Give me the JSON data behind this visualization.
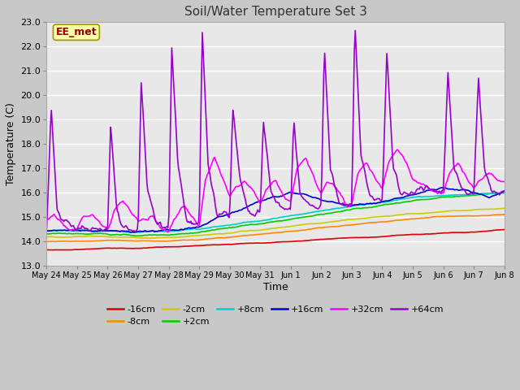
{
  "title": "Soil/Water Temperature Set 3",
  "xlabel": "Time",
  "ylabel": "Temperature (C)",
  "ylim": [
    13.0,
    23.0
  ],
  "yticks": [
    13.0,
    14.0,
    15.0,
    16.0,
    17.0,
    18.0,
    19.0,
    20.0,
    21.0,
    22.0,
    23.0
  ],
  "xtick_labels": [
    "May 24",
    "May 25",
    "May 26",
    "May 27",
    "May 28",
    "May 29",
    "May 30",
    "May 31",
    "Jun 1",
    "Jun 2",
    "Jun 3",
    "Jun 4",
    "Jun 5",
    "Jun 6",
    "Jun 7",
    "Jun 8"
  ],
  "series": [
    {
      "label": "-16cm",
      "color": "#dd0000"
    },
    {
      "label": "-8cm",
      "color": "#ff8800"
    },
    {
      "label": "-2cm",
      "color": "#cccc00"
    },
    {
      "label": "+2cm",
      "color": "#00cc00"
    },
    {
      "label": "+8cm",
      "color": "#00cccc"
    },
    {
      "label": "+16cm",
      "color": "#0000cc"
    },
    {
      "label": "+32cm",
      "color": "#ff00ff"
    },
    {
      "label": "+64cm",
      "color": "#9900cc"
    }
  ],
  "watermark": "EE_met",
  "watermark_color": "#990000",
  "watermark_bg": "#ffffaa",
  "fig_bg": "#c8c8c8",
  "plot_bg": "#e8e8e8",
  "grid_color": "#ffffff",
  "title_fontsize": 11,
  "axis_label_fontsize": 9,
  "tick_fontsize": 8,
  "legend_fontsize": 8
}
